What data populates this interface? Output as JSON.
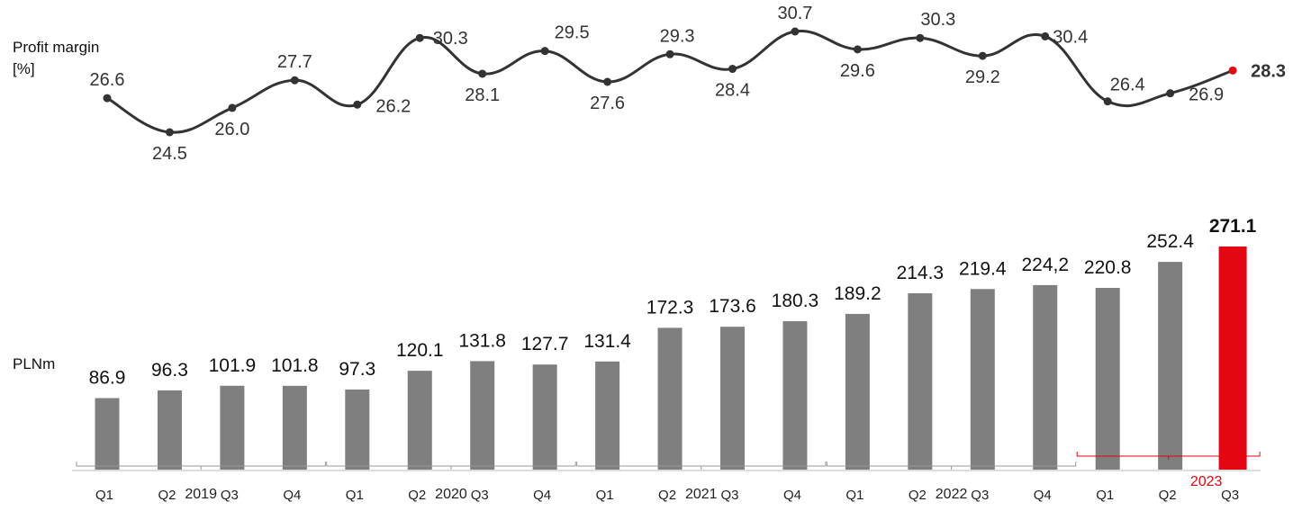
{
  "labels": {
    "profit_margin": "Profit margin",
    "profit_margin_unit": "[%]",
    "bars_unit": "PLNm"
  },
  "colors": {
    "bar": "#7f7f7f",
    "highlight": "#e30613",
    "line": "#333333",
    "text": "#111111"
  },
  "chart_data": [
    {
      "type": "line",
      "name": "profit-margin",
      "categories": [
        "Q1",
        "Q2",
        "Q3",
        "Q4",
        "Q1",
        "Q2",
        "Q3",
        "Q4",
        "Q1",
        "Q2",
        "Q3",
        "Q4",
        "Q1",
        "Q2",
        "Q3",
        "Q4",
        "Q1",
        "Q2",
        "Q3"
      ],
      "values": [
        26.6,
        24.5,
        26.0,
        27.7,
        26.2,
        30.3,
        28.1,
        29.5,
        27.6,
        29.3,
        28.4,
        30.7,
        29.6,
        30.3,
        29.2,
        30.4,
        26.4,
        26.9,
        28.3
      ],
      "value_labels": [
        "26.6",
        "24.5",
        "26.0",
        "27.7",
        "26.2",
        "30.3",
        "28.1",
        "29.5",
        "27.6",
        "29.3",
        "28.4",
        "30.7",
        "29.6",
        "30.3",
        "29.2",
        "30.4",
        "26.4",
        "26.9",
        "28.3"
      ],
      "highlight_index": 18,
      "ylabel": "Profit margin [%]"
    },
    {
      "type": "bar",
      "name": "revenue",
      "categories": [
        "Q1",
        "Q2",
        "Q3",
        "Q4",
        "Q1",
        "Q2",
        "Q3",
        "Q4",
        "Q1",
        "Q2",
        "Q3",
        "Q4",
        "Q1",
        "Q2",
        "Q3",
        "Q4",
        "Q1",
        "Q2",
        "Q3"
      ],
      "values": [
        86.9,
        96.3,
        101.9,
        101.8,
        97.3,
        120.1,
        131.8,
        127.7,
        131.4,
        172.3,
        173.6,
        180.3,
        189.2,
        214.3,
        219.4,
        224.2,
        220.8,
        252.4,
        271.1
      ],
      "value_labels": [
        "86.9",
        "96.3",
        "101.9",
        "101.8",
        "97.3",
        "120.1",
        "131.8",
        "127.7",
        "131.4",
        "172.3",
        "173.6",
        "180.3",
        "189.2",
        "214.3",
        "219.4",
        "224,2",
        "220.8",
        "252.4",
        "271.1"
      ],
      "highlight_index": 18,
      "ylabel": "PLNm",
      "years": [
        {
          "label": "2019",
          "start": 0,
          "end": 3
        },
        {
          "label": "2020",
          "start": 4,
          "end": 7
        },
        {
          "label": "2021",
          "start": 8,
          "end": 11
        },
        {
          "label": "2022",
          "start": 12,
          "end": 15
        },
        {
          "label": "2023",
          "start": 16,
          "end": 18,
          "highlight": true
        }
      ]
    }
  ]
}
